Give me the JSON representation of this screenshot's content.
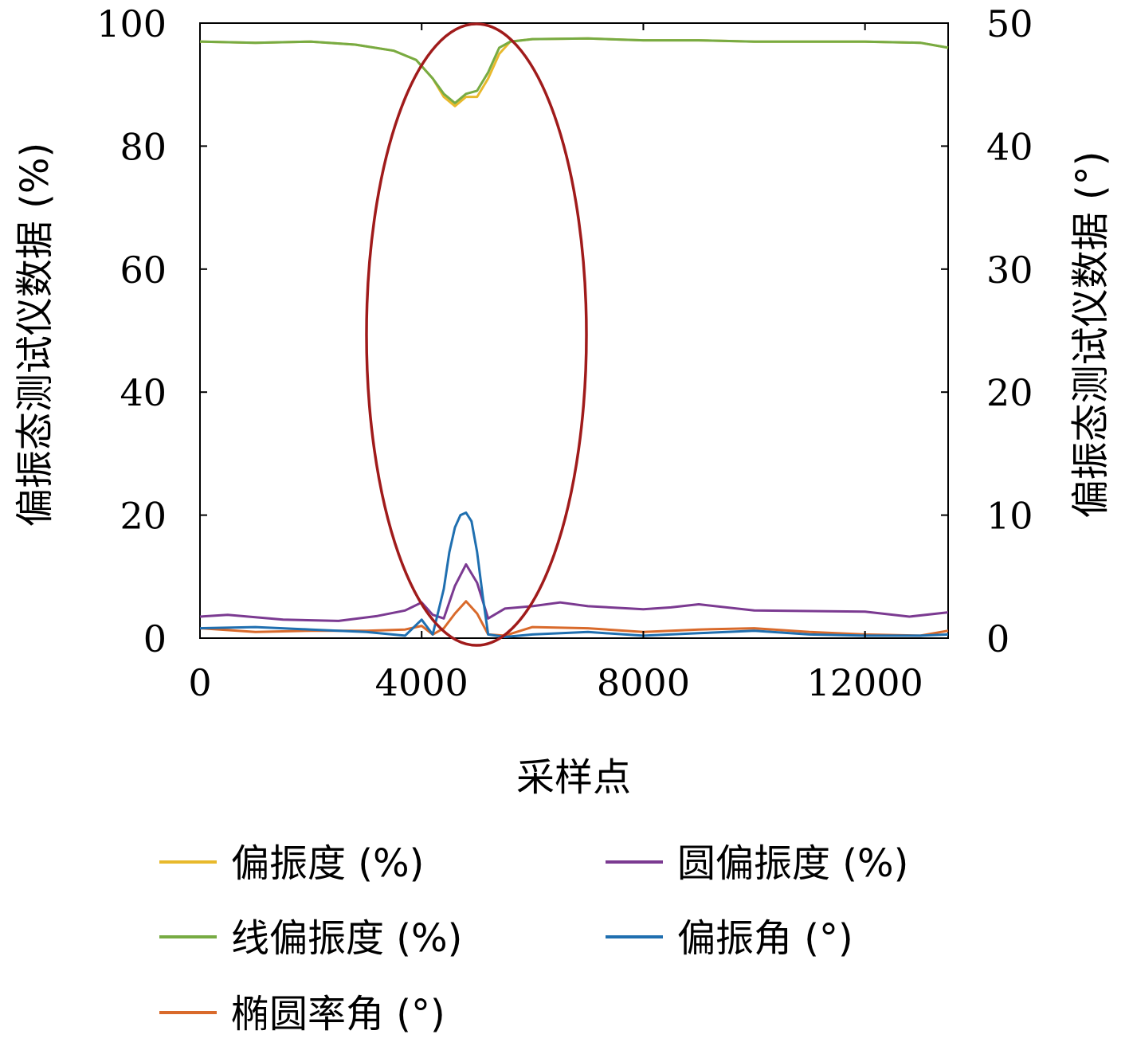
{
  "chart_data": {
    "type": "line",
    "xlabel": "采样点",
    "ylabel_left": "偏振态测试仪数据 (%)",
    "ylabel_right": "偏振态测试仪数据 (°)",
    "xlim": [
      0,
      13500
    ],
    "ylim_left": [
      0,
      100
    ],
    "ylim_right": [
      0,
      50
    ],
    "x_ticks": [
      0,
      4000,
      8000,
      12000
    ],
    "y_ticks_left": [
      0,
      20,
      40,
      60,
      80,
      100
    ],
    "y_ticks_right": [
      0,
      10,
      20,
      30,
      40,
      50
    ],
    "grid": false,
    "legend_position": "bottom",
    "series": [
      {
        "name": "偏振度 (%)",
        "axis": "left",
        "color": "#e8b92c",
        "x": [
          0,
          1000,
          2000,
          2800,
          3500,
          3900,
          4200,
          4400,
          4600,
          4800,
          5000,
          5200,
          5400,
          5600,
          6000,
          7000,
          8000,
          9000,
          10000,
          11000,
          12000,
          13000,
          13500
        ],
        "y": [
          97,
          96.8,
          97,
          96.5,
          95.5,
          94,
          91,
          88,
          86.5,
          88,
          88,
          91,
          95,
          97,
          97.4,
          97.5,
          97.2,
          97.2,
          97,
          97,
          97,
          96.8,
          96
        ]
      },
      {
        "name": "线偏振度 (%)",
        "axis": "left",
        "color": "#77ab43",
        "x": [
          0,
          1000,
          2000,
          2800,
          3500,
          3900,
          4200,
          4400,
          4600,
          4800,
          5000,
          5200,
          5400,
          5600,
          6000,
          7000,
          8000,
          9000,
          10000,
          11000,
          12000,
          13000,
          13500
        ],
        "y": [
          97,
          96.8,
          97,
          96.5,
          95.5,
          94,
          91,
          88.5,
          87,
          88.5,
          89,
          92,
          96,
          97,
          97.4,
          97.5,
          97.2,
          97.2,
          97,
          97,
          97,
          96.8,
          96
        ]
      },
      {
        "name": "椭圆率角 (°)",
        "axis": "right",
        "color": "#d96a2b",
        "x": [
          0,
          1000,
          2000,
          3000,
          3700,
          4000,
          4200,
          4400,
          4600,
          4800,
          5000,
          5200,
          5500,
          6000,
          7000,
          8000,
          9000,
          10000,
          11000,
          12000,
          13000,
          13500
        ],
        "y": [
          0.8,
          0.5,
          0.6,
          0.6,
          0.7,
          1.0,
          0.3,
          0.8,
          2.0,
          3.0,
          2.0,
          0.3,
          0.2,
          0.9,
          0.8,
          0.5,
          0.7,
          0.8,
          0.5,
          0.3,
          0.2,
          0.6
        ]
      },
      {
        "name": "圆偏振度 (%)",
        "axis": "left",
        "color": "#7b3a91",
        "x": [
          0,
          500,
          1500,
          2500,
          3200,
          3700,
          4000,
          4200,
          4400,
          4600,
          4800,
          5000,
          5200,
          5500,
          6000,
          6500,
          7000,
          8000,
          8500,
          9000,
          10000,
          11000,
          12000,
          12800,
          13500
        ],
        "y": [
          3.5,
          3.8,
          3,
          2.8,
          3.6,
          4.5,
          5.8,
          3.8,
          3.2,
          8.5,
          12,
          9,
          3.2,
          4.8,
          5.2,
          5.8,
          5.2,
          4.7,
          5.0,
          5.5,
          4.5,
          4.4,
          4.3,
          3.5,
          4.2
        ]
      },
      {
        "name": "偏振角 (°)",
        "axis": "right",
        "color": "#1f6fb0",
        "x": [
          0,
          1000,
          2000,
          3000,
          3700,
          4000,
          4200,
          4400,
          4500,
          4600,
          4700,
          4800,
          4900,
          5000,
          5100,
          5200,
          5500,
          6000,
          7000,
          8000,
          9000,
          10000,
          11000,
          12000,
          13000,
          13500
        ],
        "y": [
          0.8,
          0.9,
          0.7,
          0.5,
          0.2,
          1.5,
          0.3,
          4.0,
          7.0,
          9.0,
          10.0,
          10.2,
          9.5,
          7.0,
          3.5,
          0.3,
          0.1,
          0.3,
          0.5,
          0.2,
          0.4,
          0.6,
          0.3,
          0.2,
          0.2,
          0.3
        ]
      }
    ]
  }
}
